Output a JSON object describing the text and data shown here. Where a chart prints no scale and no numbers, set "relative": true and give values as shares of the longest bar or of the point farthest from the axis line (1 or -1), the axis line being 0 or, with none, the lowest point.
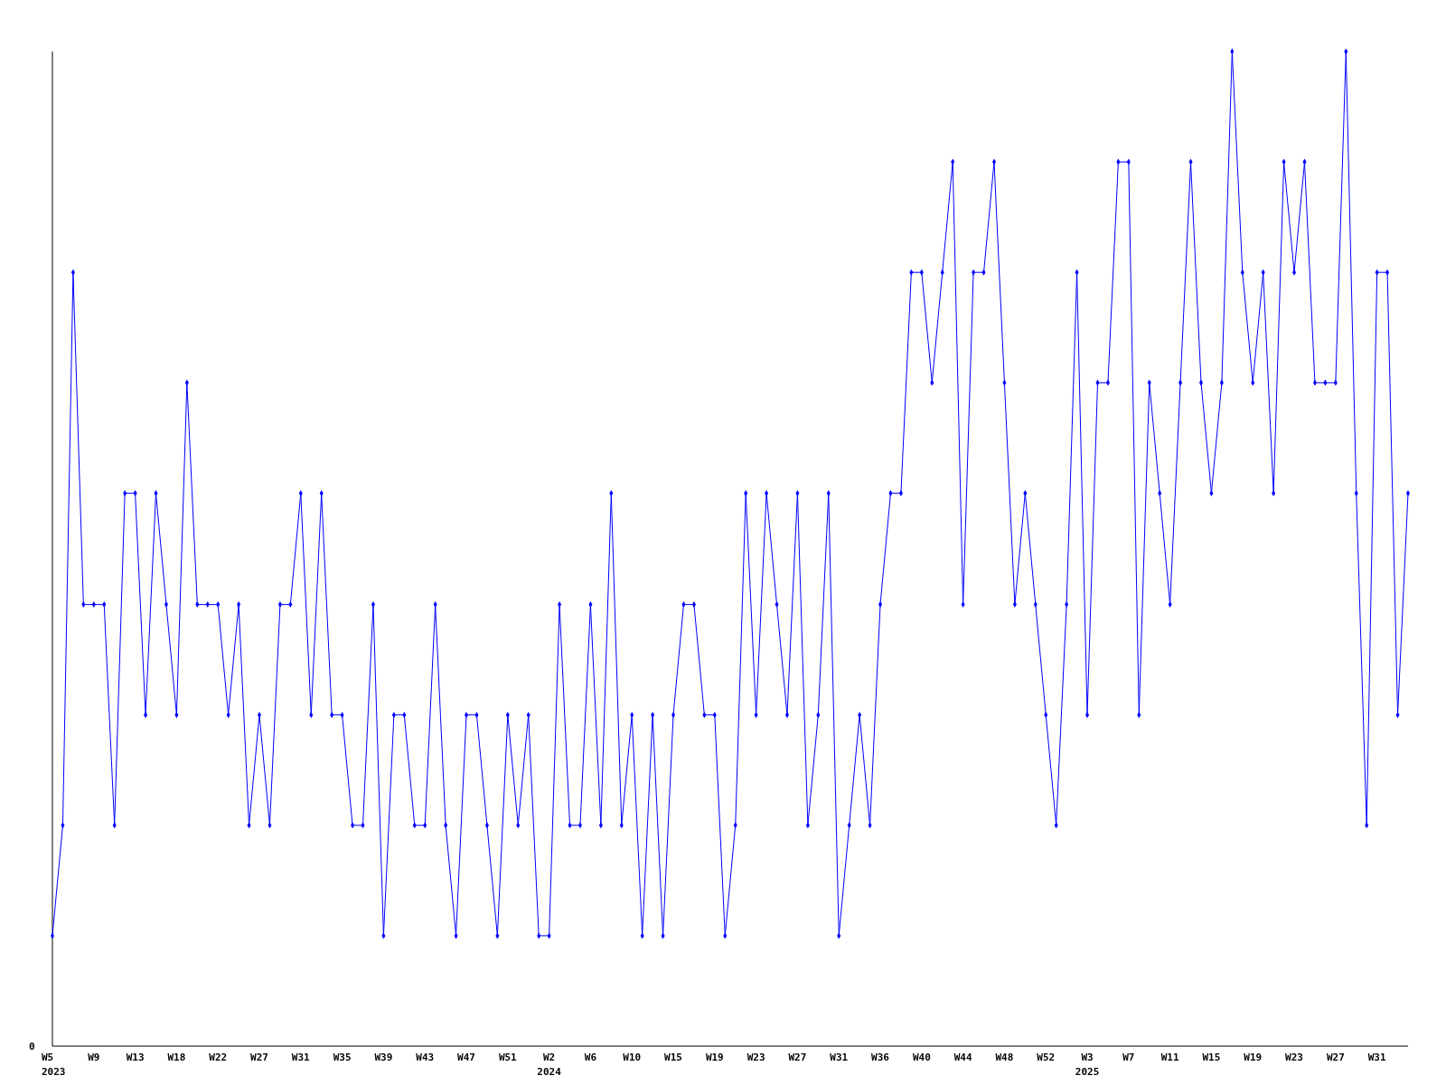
{
  "chart_data": {
    "type": "line",
    "relative": true,
    "marker": "diamond",
    "line_style": "solid",
    "annotations": [
      "0"
    ],
    "categories": [
      "W5\n2023",
      null,
      null,
      null,
      "W9",
      null,
      null,
      null,
      "W13",
      null,
      null,
      null,
      "W18",
      null,
      null,
      null,
      "W22",
      null,
      null,
      null,
      "W27",
      null,
      null,
      null,
      "W31",
      null,
      null,
      null,
      "W35",
      null,
      null,
      null,
      "W39",
      null,
      null,
      null,
      "W43",
      null,
      null,
      null,
      "W47",
      null,
      null,
      null,
      "W51",
      null,
      null,
      null,
      "W2\n2024",
      null,
      null,
      null,
      "W6",
      null,
      null,
      null,
      "W10",
      null,
      null,
      null,
      "W15",
      null,
      null,
      null,
      "W19",
      null,
      null,
      null,
      "W23",
      null,
      null,
      null,
      "W27",
      null,
      null,
      null,
      "W31",
      null,
      null,
      null,
      "W36",
      null,
      null,
      null,
      "W40",
      null,
      null,
      null,
      "W44",
      null,
      null,
      null,
      "W48",
      null,
      null,
      null,
      "W52",
      null,
      null,
      null,
      "W3\n2025",
      null,
      null,
      null,
      "W7",
      null,
      null,
      null,
      "W11",
      null,
      null,
      null,
      "W15",
      null,
      null,
      null,
      "W19",
      null,
      null,
      null,
      "W23",
      null,
      null,
      null,
      "W27",
      null,
      null,
      null,
      "W31",
      null,
      null,
      null
    ],
    "series": [
      {
        "color": "#0000ff",
        "values": [
          0.111,
          0.222,
          0.778,
          0.444,
          0.444,
          0.444,
          0.222,
          0.556,
          0.556,
          0.333,
          0.556,
          0.444,
          0.333,
          0.667,
          0.444,
          0.444,
          0.444,
          0.333,
          0.444,
          0.222,
          0.333,
          0.222,
          0.444,
          0.444,
          0.556,
          0.333,
          0.556,
          0.333,
          0.333,
          0.222,
          0.222,
          0.444,
          0.111,
          0.333,
          0.333,
          0.222,
          0.222,
          0.444,
          0.222,
          0.111,
          0.333,
          0.333,
          0.222,
          0.111,
          0.333,
          0.222,
          0.333,
          0.111,
          0.111,
          0.444,
          0.222,
          0.222,
          0.444,
          0.222,
          0.556,
          0.222,
          0.333,
          0.111,
          0.333,
          0.111,
          0.333,
          0.444,
          0.444,
          0.333,
          0.333,
          0.111,
          0.222,
          0.556,
          0.333,
          0.556,
          0.444,
          0.333,
          0.556,
          0.222,
          0.333,
          0.556,
          0.111,
          0.222,
          0.333,
          0.222,
          0.444,
          0.556,
          0.556,
          0.778,
          0.778,
          0.667,
          0.778,
          0.889,
          0.444,
          0.778,
          0.778,
          0.889,
          0.667,
          0.444,
          0.556,
          0.444,
          0.333,
          0.222,
          0.444,
          0.778,
          0.333,
          0.667,
          0.667,
          0.889,
          0.889,
          0.333,
          0.667,
          0.556,
          0.444,
          0.667,
          0.889,
          0.667,
          0.556,
          0.667,
          1,
          0.778,
          0.667,
          0.778,
          0.556,
          0.889,
          0.778,
          0.889,
          0.667,
          0.667,
          0.667,
          1,
          0.556,
          0.222,
          0.778,
          0.778,
          0.333,
          0.556
        ]
      }
    ]
  }
}
